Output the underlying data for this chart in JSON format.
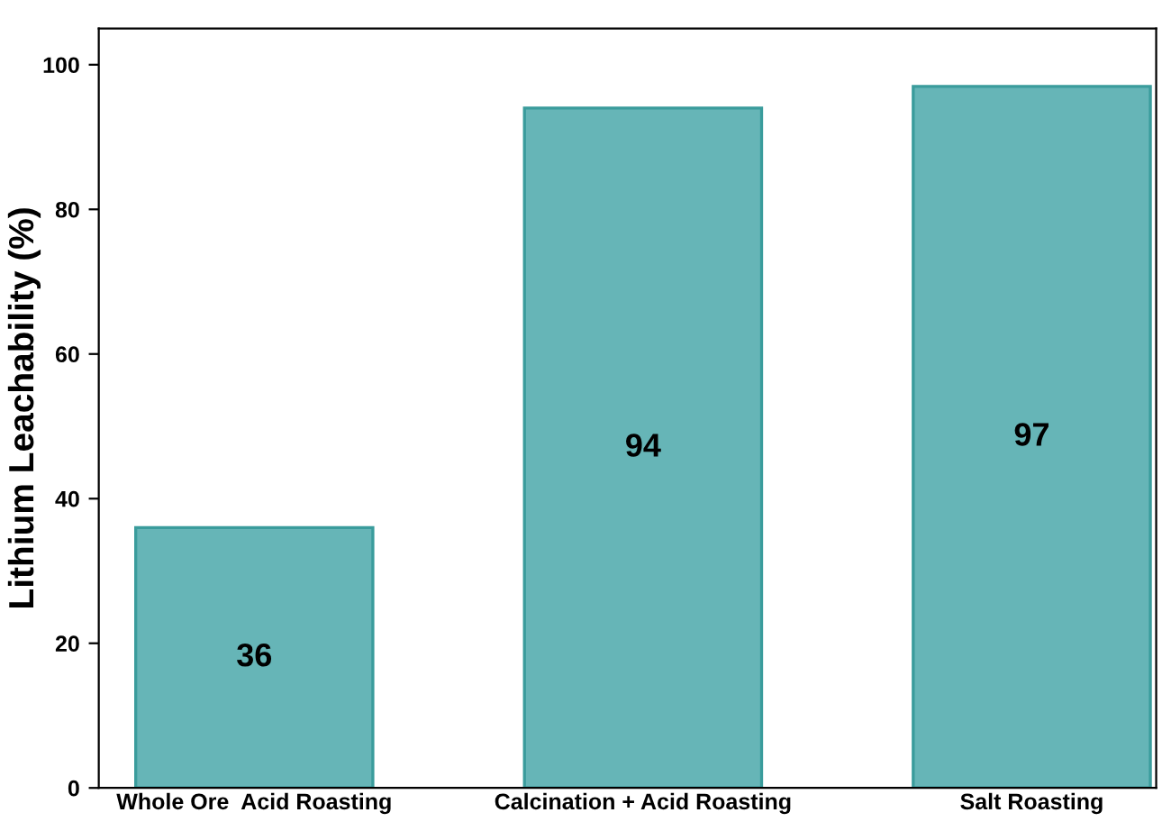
{
  "chart_data": {
    "type": "bar",
    "ylabel": "Lithium Leachability (%)",
    "categories": [
      "Whole Ore  Acid Roasting",
      "Calcination + Acid Roasting",
      "Salt Roasting"
    ],
    "values": [
      36,
      94,
      97
    ],
    "color": "#66b5b7",
    "ylim": [
      0,
      105
    ],
    "yticks": [
      0,
      20,
      40,
      60,
      80,
      100
    ],
    "grid": false,
    "data_labels": true
  }
}
